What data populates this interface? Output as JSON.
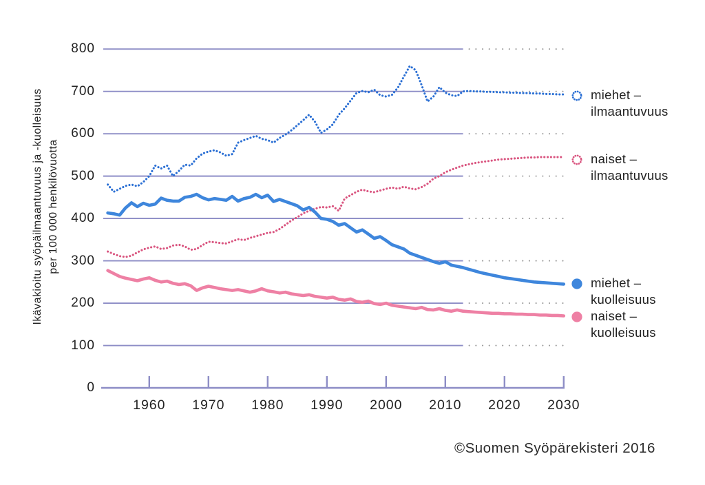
{
  "figure": {
    "y_axis_title_line1": "Ikävakioitu syöpäilmaantuvuus ja -kuolleisuus",
    "y_axis_title_line2": "per 100 000 henkilövuotta",
    "copyright": "©Suomen Syöpärekisteri 2016"
  },
  "colors": {
    "axis": "#8d8dc6",
    "grid_solid": "#8d8dc6",
    "grid_dotted": "#9d9d9d",
    "text": "#222222",
    "miehet_ilmaantuvuus": "#2a6fd4",
    "naiset_ilmaantuvuus": "#d9547f",
    "miehet_kuolleisuus": "#3e86dc",
    "naiset_kuolleisuus": "#ee80a4"
  },
  "legend": {
    "items": [
      {
        "id": "miehet-ilmaantuvuus",
        "line1": "miehet –",
        "line2": "ilmaantuvuus",
        "marker": "dotted",
        "color": "#2a6fd4"
      },
      {
        "id": "naiset-ilmaantuvuus",
        "line1": "naiset –",
        "line2": "ilmaantuvuus",
        "marker": "dotted",
        "color": "#d9547f"
      },
      {
        "id": "miehet-kuolleisuus",
        "line1": "miehet –",
        "line2": "kuolleisuus",
        "marker": "solid",
        "color": "#3e86dc"
      },
      {
        "id": "naiset-kuolleisuus",
        "line1": "naiset –",
        "line2": "kuolleisuus",
        "marker": "solid",
        "color": "#ee80a4"
      }
    ]
  },
  "chart_data": {
    "type": "line",
    "title": "",
    "xlabel": "",
    "ylabel": "Ikävakioitu syöpäilmaantuvuus ja -kuolleisuus per 100 000 henkilövuotta",
    "ylim": [
      0,
      800
    ],
    "y_ticks": [
      0,
      100,
      200,
      300,
      400,
      500,
      600,
      700,
      800
    ],
    "x_ticks": [
      1960,
      1970,
      1980,
      1990,
      2000,
      2010,
      2020,
      2030
    ],
    "x_range": [
      1953,
      2030
    ],
    "observed_through": 2013,
    "projection_from": 2014,
    "grid": "horizontal gridlines; solid through 2013, dotted in projection region 2014-2030",
    "legend_position": "right",
    "series": [
      {
        "id": "miehet-ilmaantuvuus",
        "label": "miehet – ilmaantuvuus",
        "style": "dotted",
        "color": "#2a6fd4",
        "start_year": 1953,
        "values": [
          480,
          463,
          470,
          477,
          480,
          476,
          486,
          500,
          525,
          518,
          525,
          500,
          512,
          527,
          525,
          542,
          553,
          558,
          561,
          556,
          548,
          552,
          579,
          585,
          590,
          595,
          588,
          585,
          579,
          590,
          598,
          608,
          620,
          632,
          645,
          628,
          602,
          610,
          622,
          645,
          660,
          678,
          696,
          701,
          698,
          704,
          691,
          688,
          692,
          709,
          735,
          760,
          750,
          715,
          676,
          688,
          710,
          697,
          691,
          689,
          700,
          701,
          700,
          700,
          699,
          699,
          698,
          698,
          697,
          697,
          696,
          696,
          695,
          695,
          694,
          694,
          693,
          693
        ]
      },
      {
        "id": "naiset-ilmaantuvuus",
        "label": "naiset – ilmaantuvuus",
        "style": "dotted",
        "color": "#d9547f",
        "start_year": 1953,
        "values": [
          322,
          316,
          311,
          309,
          312,
          320,
          327,
          331,
          334,
          328,
          330,
          336,
          338,
          334,
          326,
          328,
          337,
          345,
          344,
          342,
          341,
          346,
          351,
          349,
          354,
          358,
          362,
          366,
          368,
          375,
          385,
          395,
          403,
          412,
          418,
          423,
          427,
          426,
          429,
          418,
          447,
          455,
          463,
          468,
          464,
          462,
          466,
          470,
          473,
          470,
          475,
          471,
          469,
          474,
          482,
          494,
          500,
          509,
          515,
          520,
          525,
          528,
          531,
          533,
          535,
          537,
          539,
          540,
          541,
          542,
          543,
          544,
          544,
          545,
          545,
          545,
          545,
          545
        ]
      },
      {
        "id": "miehet-kuolleisuus",
        "label": "miehet – kuolleisuus",
        "style": "solid",
        "color": "#3e86dc",
        "start_year": 1953,
        "values": [
          413,
          411,
          408,
          425,
          437,
          428,
          436,
          431,
          434,
          448,
          443,
          441,
          441,
          450,
          452,
          457,
          449,
          444,
          447,
          445,
          443,
          452,
          441,
          447,
          450,
          457,
          449,
          455,
          440,
          445,
          440,
          435,
          430,
          420,
          426,
          415,
          400,
          398,
          393,
          384,
          388,
          378,
          368,
          373,
          363,
          353,
          357,
          348,
          338,
          333,
          328,
          318,
          313,
          308,
          303,
          298,
          294,
          298,
          290,
          287,
          284,
          280,
          276,
          272,
          269,
          266,
          263,
          260,
          258,
          256,
          254,
          252,
          250,
          249,
          248,
          247,
          246,
          245
        ]
      },
      {
        "id": "naiset-kuolleisuus",
        "label": "naiset – kuolleisuus",
        "style": "solid",
        "color": "#ee80a4",
        "start_year": 1953,
        "values": [
          277,
          270,
          263,
          259,
          256,
          253,
          257,
          260,
          254,
          250,
          252,
          247,
          244,
          246,
          241,
          230,
          236,
          240,
          237,
          234,
          232,
          230,
          232,
          229,
          226,
          229,
          234,
          229,
          227,
          224,
          226,
          222,
          220,
          218,
          220,
          216,
          214,
          212,
          214,
          209,
          207,
          210,
          204,
          202,
          205,
          199,
          197,
          200,
          195,
          193,
          191,
          189,
          187,
          190,
          185,
          184,
          187,
          183,
          181,
          184,
          181,
          180,
          179,
          178,
          177,
          176,
          176,
          175,
          175,
          174,
          174,
          173,
          173,
          172,
          172,
          171,
          171,
          170
        ]
      }
    ]
  }
}
